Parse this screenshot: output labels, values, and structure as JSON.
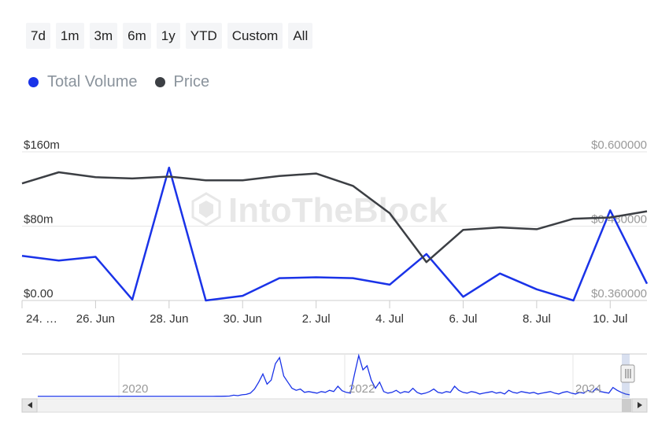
{
  "range_buttons": [
    "7d",
    "1m",
    "3m",
    "6m",
    "1y",
    "YTD",
    "Custom",
    "All"
  ],
  "legend": [
    {
      "label": "Total Volume",
      "color": "#1a33e8"
    },
    {
      "label": "Price",
      "color": "#3c3f44"
    }
  ],
  "watermark": "IntoTheBlock",
  "chart_data": {
    "type": "line",
    "x": [
      "24 Jun",
      "25 Jun",
      "26 Jun",
      "27 Jun",
      "28 Jun",
      "29 Jun",
      "30 Jun",
      "1 Jul",
      "2 Jul",
      "3 Jul",
      "4 Jul",
      "5 Jul",
      "6 Jul",
      "7 Jul",
      "8 Jul",
      "9 Jul",
      "10 Jul",
      "11 Jul"
    ],
    "x_tick_labels": [
      "24. …",
      "26. Jun",
      "28. Jun",
      "30. Jun",
      "2. Jul",
      "4. Jul",
      "6. Jul",
      "8. Jul",
      "10. Jul"
    ],
    "series": [
      {
        "name": "Total Volume",
        "axis": "left",
        "color": "#1a33e8",
        "values": [
          48,
          43,
          47,
          1,
          143,
          0,
          5,
          24,
          25,
          24,
          17,
          50,
          4,
          29,
          12,
          0,
          97,
          18
        ]
      },
      {
        "name": "Price",
        "axis": "right",
        "color": "#3c3f44",
        "values": [
          0.549,
          0.567,
          0.559,
          0.557,
          0.56,
          0.554,
          0.554,
          0.561,
          0.565,
          0.545,
          0.501,
          0.422,
          0.474,
          0.478,
          0.475,
          0.492,
          0.494,
          0.504
        ]
      }
    ],
    "y_left": {
      "ticks": [
        "$0.00",
        "$80m",
        "$160m"
      ],
      "range": [
        0,
        160
      ]
    },
    "y_right": {
      "ticks": [
        "$0.360000",
        "$0.480000",
        "$0.600000"
      ],
      "range": [
        0.36,
        0.6
      ]
    },
    "navigator": {
      "year_labels": [
        "2020",
        "2022",
        "2024"
      ],
      "values": [
        0.2,
        0.2,
        0.2,
        0.2,
        0.2,
        0.2,
        0.2,
        0.2,
        0.2,
        0.2,
        0.2,
        0.2,
        0.2,
        0.2,
        0.2,
        0.2,
        0.2,
        0.2,
        0.2,
        0.2,
        0.2,
        0.2,
        0.2,
        0.2,
        0.2,
        0.2,
        0.2,
        0.2,
        0.2,
        0.2,
        0.2,
        0.2,
        0.2,
        0.2,
        0.2,
        0.2,
        0.2,
        0.2,
        0.2,
        0.2,
        0.2,
        0.2,
        0.2,
        0.3,
        0.4,
        0.5,
        1,
        3,
        2,
        4,
        5,
        8,
        18,
        35,
        55,
        30,
        40,
        80,
        95,
        50,
        35,
        20,
        15,
        18,
        10,
        12,
        10,
        8,
        12,
        10,
        15,
        12,
        25,
        14,
        10,
        8,
        55,
        100,
        65,
        75,
        40,
        20,
        35,
        12,
        8,
        10,
        15,
        8,
        12,
        10,
        20,
        10,
        6,
        8,
        12,
        18,
        10,
        8,
        12,
        10,
        25,
        15,
        10,
        8,
        12,
        10,
        6,
        8,
        10,
        12,
        8,
        10,
        6,
        15,
        10,
        8,
        12,
        10,
        8,
        10,
        6,
        8,
        10,
        12,
        8,
        6,
        10,
        12,
        8,
        6,
        10,
        8,
        15,
        10,
        20,
        12,
        10,
        8,
        22,
        15,
        10,
        6,
        4
      ]
    }
  }
}
